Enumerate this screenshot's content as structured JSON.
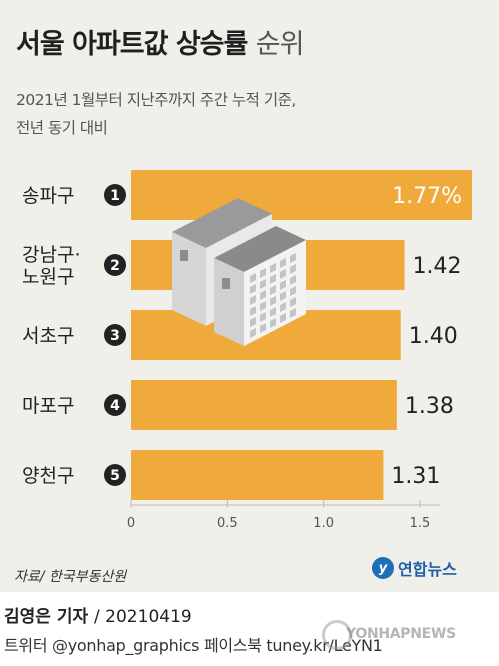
{
  "header": {
    "title_bold": "서울 아파트값 상승률",
    "title_light": "순위",
    "subtitle_line1": "2021년 1월부터 지난주까지 주간 누적 기준,",
    "subtitle_line2": "전년 동기 대비"
  },
  "chart_data": {
    "type": "bar",
    "orientation": "horizontal",
    "categories": [
      "송파구",
      "강남구·노원구",
      "서초구",
      "마포구",
      "양천구"
    ],
    "category_lines": [
      [
        "송파구"
      ],
      [
        "강남구·",
        "노원구"
      ],
      [
        "서초구"
      ],
      [
        "마포구"
      ],
      [
        "양천구"
      ]
    ],
    "ranks": [
      "1",
      "2",
      "3",
      "4",
      "5"
    ],
    "values": [
      1.77,
      1.42,
      1.4,
      1.38,
      1.31
    ],
    "value_labels": [
      "1.77%",
      "1.42",
      "1.40",
      "1.38",
      "1.31"
    ],
    "xlim": [
      0,
      1.77
    ],
    "x_ticks": [
      "0",
      "0.5",
      "1.0",
      "1.5"
    ],
    "x_tick_values": [
      0,
      0.5,
      1.0,
      1.5
    ],
    "title": "서울 아파트값 상승률 순위",
    "xlabel": "",
    "ylabel": "",
    "grid": false,
    "colors": {
      "bar": "#f0a93b",
      "highlight_label": "#ffffff",
      "label": "#222222",
      "rank_badge": "#222222",
      "tick": "#bdbdbd"
    }
  },
  "footer": {
    "source": "자료/ 한국부동산원",
    "brand": "연합뉴스",
    "brand_icon": "yonhap-logo-icon",
    "byline_name": "김영은 기자",
    "byline_date": "/ 20210419",
    "social": "트위터 @yonhap_graphics  페이스북 tuney.kr/LeYN1",
    "watermark": "YONHAPNEWS"
  }
}
